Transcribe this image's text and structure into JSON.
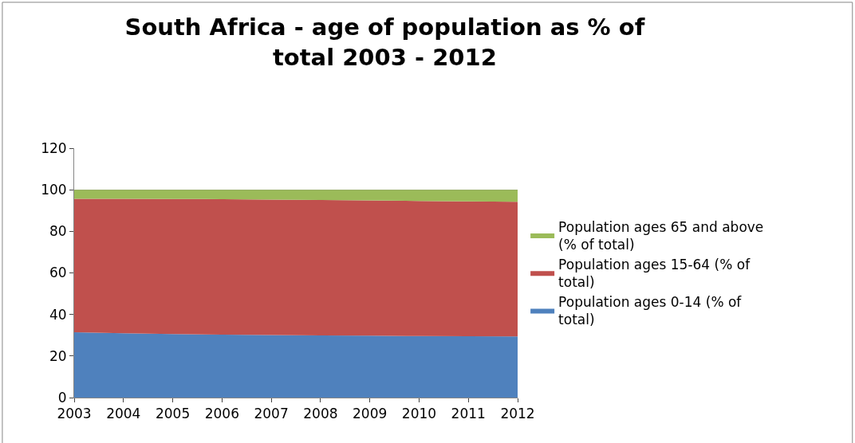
{
  "chart_data": {
    "type": "area",
    "title": "South Africa - age of population as % of total 2003 - 2012",
    "categories": [
      "2003",
      "2004",
      "2005",
      "2006",
      "2007",
      "2008",
      "2009",
      "2010",
      "2011",
      "2012"
    ],
    "stacked": true,
    "ylim": [
      0,
      120
    ],
    "yticks": [
      0,
      20,
      40,
      60,
      80,
      100,
      120
    ],
    "grid": "y",
    "legend": "right",
    "series": [
      {
        "name": "Population ages 0-14 (% of total)",
        "color": "#4f81bd",
        "values": [
          31.4,
          31.0,
          30.6,
          30.3,
          30.1,
          29.9,
          29.8,
          29.6,
          29.5,
          29.4
        ]
      },
      {
        "name": "Population ages 15-64 (% of total)",
        "color": "#c0504d",
        "values": [
          64.3,
          64.7,
          65.0,
          65.2,
          65.2,
          65.2,
          65.1,
          65.0,
          64.9,
          64.8
        ]
      },
      {
        "name": "Population ages 65 and above (% of total)",
        "color": "#9bbb59",
        "values": [
          4.3,
          4.3,
          4.4,
          4.5,
          4.7,
          4.9,
          5.1,
          5.4,
          5.6,
          5.8
        ]
      }
    ]
  }
}
